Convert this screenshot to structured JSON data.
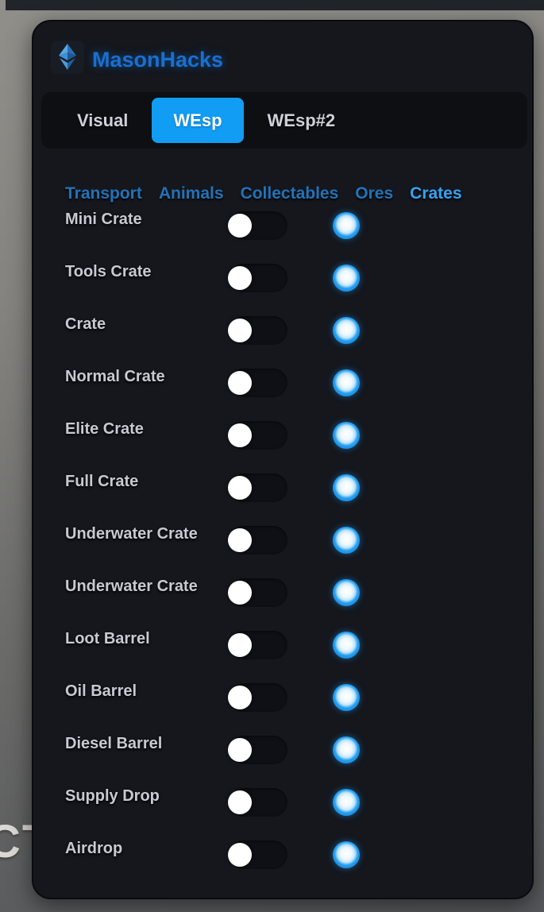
{
  "app": {
    "title": "MasonHacks",
    "logo": "gem-diamond-icon"
  },
  "tabs": {
    "items": [
      {
        "label": "Visual",
        "active": false
      },
      {
        "label": "WEsp",
        "active": true
      },
      {
        "label": "WEsp#2",
        "active": false
      }
    ]
  },
  "subtabs": {
    "items": [
      {
        "label": "Transport",
        "active": false
      },
      {
        "label": "Animals",
        "active": false
      },
      {
        "label": "Collectables",
        "active": false
      },
      {
        "label": "Ores",
        "active": false
      },
      {
        "label": "Crates",
        "active": true
      }
    ]
  },
  "esp_list": {
    "rows": [
      {
        "label": "Mini Crate",
        "enabled": false,
        "color": "#1f9ff2"
      },
      {
        "label": "Tools Crate",
        "enabled": false,
        "color": "#1f9ff2"
      },
      {
        "label": "Crate",
        "enabled": false,
        "color": "#1f9ff2"
      },
      {
        "label": "Normal Crate",
        "enabled": false,
        "color": "#1f9ff2"
      },
      {
        "label": "Elite Crate",
        "enabled": false,
        "color": "#1f9ff2"
      },
      {
        "label": "Full Crate",
        "enabled": false,
        "color": "#1f9ff2"
      },
      {
        "label": "Underwater Crate",
        "enabled": false,
        "color": "#1f9ff2"
      },
      {
        "label": "Underwater Crate",
        "enabled": false,
        "color": "#1f9ff2"
      },
      {
        "label": "Loot Barrel",
        "enabled": false,
        "color": "#1f9ff2"
      },
      {
        "label": "Oil Barrel",
        "enabled": false,
        "color": "#1f9ff2"
      },
      {
        "label": "Diesel Barrel",
        "enabled": false,
        "color": "#1f9ff2"
      },
      {
        "label": "Supply Drop",
        "enabled": false,
        "color": "#1f9ff2"
      },
      {
        "label": "Airdrop",
        "enabled": false,
        "color": "#1f9ff2"
      }
    ]
  },
  "background": {
    "partial_text": "CT"
  },
  "colors": {
    "accent_blue": "#129df5",
    "panel_bg": "#15171d",
    "tabbar_bg": "#0d0f13",
    "title_blue": "#1a6fd0",
    "subtab_blue": "#2273b8",
    "subtab_active_blue": "#34a4f5",
    "label_text": "#c7cad2",
    "toggle_track": "#0e1015",
    "toggle_knob": "#ffffff",
    "picker_ring_blue": "#1f9ff2"
  }
}
